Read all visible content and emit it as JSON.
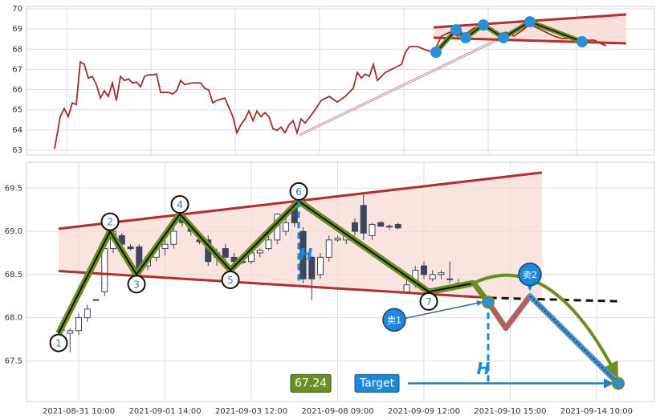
{
  "chart_data": [
    {
      "type": "line",
      "xlim": [
        -35,
        747
      ],
      "xticks": [
        15,
        120,
        225,
        330,
        435,
        540,
        650
      ],
      "ylim": [
        62.76,
        70.12
      ],
      "yticks": [
        63,
        64,
        65,
        66,
        67,
        68,
        69,
        70
      ],
      "grid": true,
      "series": [
        {
          "color": "#a52a2a",
          "x": [
            0,
            7,
            12,
            17,
            22,
            27,
            32,
            37,
            42,
            47,
            52,
            57,
            62,
            67,
            72,
            77,
            82,
            87,
            92,
            97,
            102,
            107,
            112,
            117,
            122,
            127,
            132,
            142,
            147,
            152,
            157,
            162,
            172,
            182,
            187,
            192,
            197,
            202,
            212,
            222,
            227,
            232,
            237,
            242,
            247,
            252,
            257,
            262,
            267,
            272,
            277,
            282,
            287,
            292,
            297,
            302,
            307,
            312,
            322,
            332,
            342,
            352,
            362,
            372,
            377,
            382,
            387,
            392,
            397,
            402,
            412,
            422,
            432,
            437,
            442,
            452,
            462,
            472,
            482,
            492,
            502,
            512,
            522,
            532,
            542,
            552,
            562,
            572,
            582,
            592,
            602,
            612,
            622,
            632,
            642,
            652,
            662,
            672,
            682,
            687
          ],
          "values": [
            63.07,
            64.66,
            65.06,
            64.66,
            65.34,
            65.26,
            67.37,
            67.25,
            66.57,
            66.65,
            66.25,
            65.58,
            65.94,
            65.66,
            66.33,
            65.46,
            66.65,
            66.45,
            66.53,
            66.33,
            66.37,
            66.14,
            66.65,
            66.73,
            66.73,
            66.77,
            65.86,
            65.86,
            65.78,
            65.94,
            66.45,
            66.25,
            66.33,
            66.33,
            66.06,
            65.98,
            65.34,
            65.46,
            65.58,
            64.66,
            63.86,
            64.26,
            64.54,
            64.94,
            64.46,
            64.94,
            64.66,
            64.86,
            64.66,
            64.06,
            63.98,
            64.14,
            63.86,
            64.26,
            64.46,
            63.86,
            64.54,
            64.34,
            64.86,
            65.46,
            65.66,
            65.38,
            65.66,
            66.06,
            66.85,
            66.57,
            66.77,
            66.65,
            67.25,
            66.45,
            66.85,
            67.05,
            67.25,
            67.85,
            68.13,
            68.13,
            67.97,
            67.85,
            68.65,
            68.84,
            68.65,
            68.76,
            69.04,
            69.16,
            68.92,
            68.65,
            68.84,
            68.65,
            68.92,
            69.24,
            69.04,
            68.84,
            68.65,
            68.53,
            68.53,
            68.37,
            68.45,
            68.45,
            68.25,
            68.17
          ]
        }
      ],
      "pattern": {
        "upper": {
          "x": [
            472,
            712
          ],
          "values": [
            69.08,
            69.72
          ]
        },
        "lower": {
          "x": [
            472,
            712
          ],
          "values": [
            68.57,
            68.29
          ]
        },
        "pivots": {
          "x": [
            475,
            500,
            512,
            534,
            559,
            592,
            657
          ],
          "values": [
            67.85,
            68.96,
            68.57,
            69.2,
            68.57,
            69.36,
            68.37
          ]
        },
        "neckline": {
          "x": [
            305,
            592
          ],
          "values": [
            63.75,
            69.24
          ]
        },
        "channel_color": "#b03030",
        "shade_color": "#f7d8d2",
        "pivot_color": "#6b8e23",
        "marker_color": "#2a8fd6"
      }
    },
    {
      "type": "candlestick",
      "xlim": [
        -4.05,
        68.7
      ],
      "xticks": [
        {
          "value": 2,
          "label": "2021-08-31 10:00"
        },
        {
          "value": 12,
          "label": "2021-09-01 14:00"
        },
        {
          "value": 22,
          "label": "2021-09-03 12:00"
        },
        {
          "value": 32,
          "label": "2021-09-08 09:00"
        },
        {
          "value": 42,
          "label": "2021-09-09 12:00"
        },
        {
          "value": 52,
          "label": "2021-09-10 15:00"
        },
        {
          "value": 62,
          "label": "2021-09-14 10:00"
        }
      ],
      "ylim": [
        67.03,
        69.8
      ],
      "yticks": [
        67.5,
        {
          "value": 68,
          "label": "68.0"
        },
        68.5,
        {
          "value": 69,
          "label": "69.0"
        },
        69.5
      ],
      "grid": true,
      "up_color": "#ffffff",
      "down_color": "#3d4660",
      "edge_color": "#3a4258",
      "open": [
        67.85,
        67.82,
        67.85,
        68.0,
        68.2,
        68.3,
        68.8,
        68.95,
        68.82,
        68.82,
        68.6,
        68.7,
        68.8,
        68.85,
        69.15,
        69.05,
        68.9,
        68.9,
        68.7,
        68.8,
        68.7,
        68.65,
        68.65,
        68.75,
        68.8,
        68.9,
        69.0,
        69.3,
        69.0,
        68.7,
        68.5,
        68.7,
        68.9,
        68.9,
        69.1,
        69.3,
        68.95,
        69.1,
        69.05,
        69.08,
        68.3,
        68.4,
        68.6,
        68.45,
        68.5,
        68.45,
        68.4
      ],
      "high": [
        67.95,
        67.88,
        68.05,
        68.15,
        68.22,
        68.85,
        69.1,
        68.98,
        68.85,
        68.85,
        68.75,
        68.85,
        68.9,
        69.05,
        69.2,
        69.1,
        68.95,
        68.95,
        68.8,
        68.85,
        68.75,
        68.7,
        68.8,
        68.8,
        68.95,
        69.2,
        69.2,
        69.35,
        69.05,
        68.72,
        68.75,
        68.95,
        68.95,
        69.0,
        69.15,
        69.45,
        69.1,
        69.12,
        69.08,
        69.1,
        68.45,
        68.6,
        68.65,
        68.55,
        68.55,
        68.65,
        68.45
      ],
      "low": [
        67.75,
        67.6,
        67.8,
        67.95,
        68.2,
        68.25,
        68.75,
        68.8,
        68.78,
        68.5,
        68.55,
        68.65,
        68.72,
        68.8,
        69.05,
        68.95,
        68.85,
        68.6,
        68.6,
        68.65,
        68.6,
        68.62,
        68.62,
        68.7,
        68.78,
        68.85,
        68.95,
        69.05,
        68.4,
        68.2,
        68.45,
        68.65,
        68.88,
        68.85,
        68.95,
        68.9,
        68.9,
        69.05,
        69.02,
        69.02,
        68.3,
        68.35,
        68.45,
        68.42,
        68.45,
        68.4,
        68.35
      ],
      "close": [
        67.9,
        67.85,
        68.0,
        68.1,
        68.21,
        68.8,
        69.0,
        68.85,
        68.8,
        68.55,
        68.7,
        68.8,
        68.85,
        69.0,
        69.1,
        69.0,
        68.88,
        68.65,
        68.75,
        68.7,
        68.65,
        68.64,
        68.75,
        68.78,
        68.9,
        69.2,
        69.1,
        69.1,
        68.45,
        68.45,
        68.7,
        68.9,
        68.92,
        68.95,
        69.0,
        68.98,
        69.08,
        69.06,
        69.06,
        69.04,
        68.38,
        68.55,
        68.5,
        68.5,
        68.52,
        68.45,
        68.38
      ],
      "pattern": {
        "zigzag": {
          "x": [
            -0.33,
            5.63,
            8.7,
            13.72,
            19.58,
            27.49,
            42.56,
            47.77
          ],
          "values": [
            67.82,
            69.0,
            68.5,
            69.2,
            68.55,
            69.35,
            68.3,
            68.4
          ]
        },
        "labels": [
          "1",
          "2",
          "3",
          "4",
          "5",
          "6",
          "7"
        ],
        "upper": {
          "x": [
            -0.33,
            55.67
          ],
          "values": [
            69.03,
            69.68
          ]
        },
        "lower": {
          "x": [
            -0.33,
            49.6
          ],
          "values": [
            68.54,
            68.23
          ]
        },
        "extension": {
          "x": [
            49.6,
            64.5
          ],
          "values": [
            68.23,
            68.19
          ]
        },
        "projection": {
          "x": [
            47.77,
            49.44,
            51.49,
            54.28,
            64.51
          ],
          "values": [
            68.4,
            68.18,
            67.88,
            68.25,
            67.24
          ]
        },
        "projection_colors": [
          "#6b8e23",
          "#b06060",
          "#b06060",
          "#4a90c8"
        ],
        "signals": [
          "卖1",
          "卖2"
        ],
        "height_label": "H",
        "target": 67.24,
        "target_label": "Target",
        "channel_color": "#b03030",
        "shade_color": "#f7d8d2",
        "zigzag_color": "#6b8e23",
        "accent_color": "#1e88d8"
      }
    }
  ]
}
